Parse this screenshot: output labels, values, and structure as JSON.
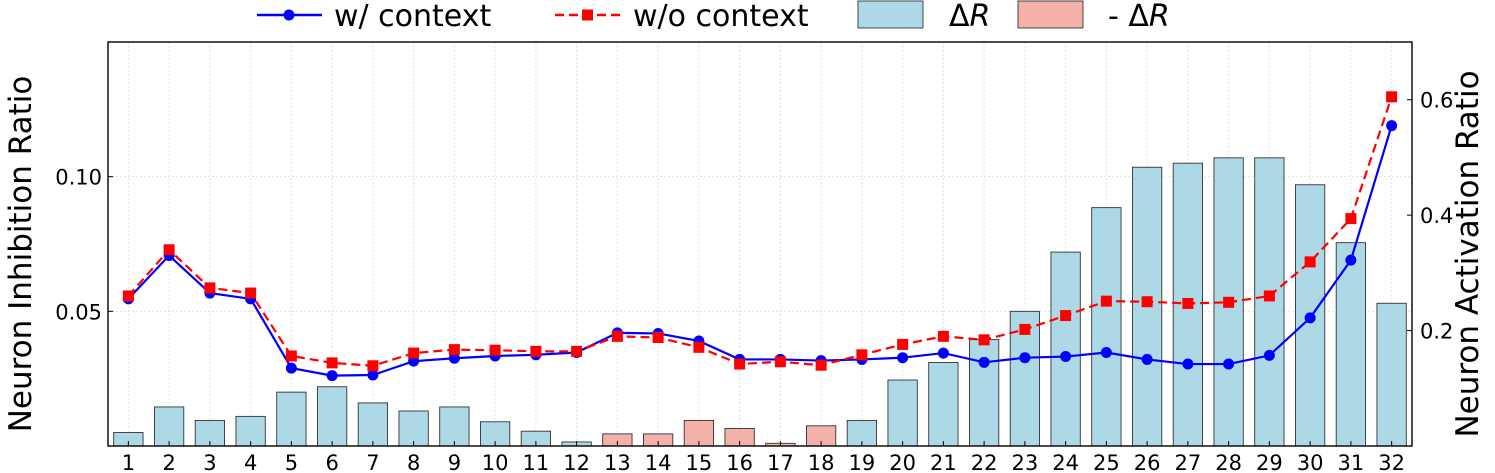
{
  "chart_data": {
    "type": "bar+line",
    "categories": [
      "1",
      "2",
      "3",
      "4",
      "5",
      "6",
      "7",
      "8",
      "9",
      "10",
      "11",
      "12",
      "13",
      "14",
      "15",
      "16",
      "17",
      "18",
      "19",
      "20",
      "21",
      "22",
      "23",
      "24",
      "25",
      "26",
      "27",
      "28",
      "29",
      "30",
      "31",
      "32"
    ],
    "y_left": {
      "label": "Neuron Inhibition Ratio",
      "ticks": [
        0.05,
        0.1
      ],
      "tick_labels": [
        "0.05",
        "0.10"
      ],
      "range": [
        0.0,
        0.15
      ]
    },
    "y_right": {
      "label": "Neuron Activation Ratio",
      "ticks": [
        0.2,
        0.4,
        0.6
      ],
      "tick_labels": [
        "0.2",
        "0.4",
        "0.6"
      ],
      "range": [
        0.0,
        0.7
      ]
    },
    "grid": true,
    "legend": {
      "placement": "top-center",
      "items": [
        {
          "key": "w_ctx",
          "label": "w/ context",
          "kind": "line",
          "color": "#0000ff",
          "marker": "circle",
          "dash": "solid"
        },
        {
          "key": "wo_ctx",
          "label": "w/o context",
          "kind": "line",
          "color": "#ff0000",
          "marker": "square",
          "dash": "dashed"
        },
        {
          "key": "dr_pos",
          "label_main": "Δ",
          "label_italic": "R",
          "kind": "bar",
          "color": "#add8e6"
        },
        {
          "key": "dr_neg",
          "label_main": "- Δ",
          "label_italic": "R",
          "kind": "bar",
          "color": "#f4b1aa"
        }
      ]
    },
    "series": [
      {
        "name": "w/ context",
        "axis": "right",
        "color": "#0000ff",
        "values": [
          0.255,
          0.33,
          0.265,
          0.255,
          0.135,
          0.122,
          0.123,
          0.147,
          0.152,
          0.156,
          0.158,
          0.162,
          0.196,
          0.195,
          0.182,
          0.15,
          0.15,
          0.148,
          0.15,
          0.153,
          0.161,
          0.145,
          0.153,
          0.155,
          0.162,
          0.15,
          0.142,
          0.142,
          0.157,
          0.222,
          0.322,
          0.555
        ]
      },
      {
        "name": "w/o context",
        "axis": "right",
        "color": "#ff0000",
        "values": [
          0.26,
          0.34,
          0.274,
          0.265,
          0.156,
          0.144,
          0.139,
          0.161,
          0.167,
          0.166,
          0.164,
          0.164,
          0.19,
          0.188,
          0.171,
          0.142,
          0.146,
          0.14,
          0.158,
          0.176,
          0.19,
          0.184,
          0.202,
          0.226,
          0.251,
          0.25,
          0.247,
          0.249,
          0.26,
          0.319,
          0.394,
          0.605
        ]
      }
    ],
    "bars": {
      "axis": "left",
      "values": [
        0.005,
        0.0145,
        0.0095,
        0.011,
        0.02,
        0.022,
        0.016,
        0.013,
        0.0145,
        0.009,
        0.0055,
        0.0015,
        0.0045,
        0.0045,
        0.0095,
        0.0065,
        0.001,
        0.0075,
        0.0095,
        0.0245,
        0.031,
        0.0395,
        0.05,
        0.072,
        0.0885,
        0.1035,
        0.105,
        0.107,
        0.107,
        0.097,
        0.0755,
        0.053
      ],
      "sign": [
        "+",
        "+",
        "+",
        "+",
        "+",
        "+",
        "+",
        "+",
        "+",
        "+",
        "+",
        "+",
        "-",
        "-",
        "-",
        "-",
        "-",
        "-",
        "+",
        "+",
        "+",
        "+",
        "+",
        "+",
        "+",
        "+",
        "+",
        "+",
        "+",
        "+",
        "+",
        "+"
      ]
    }
  }
}
